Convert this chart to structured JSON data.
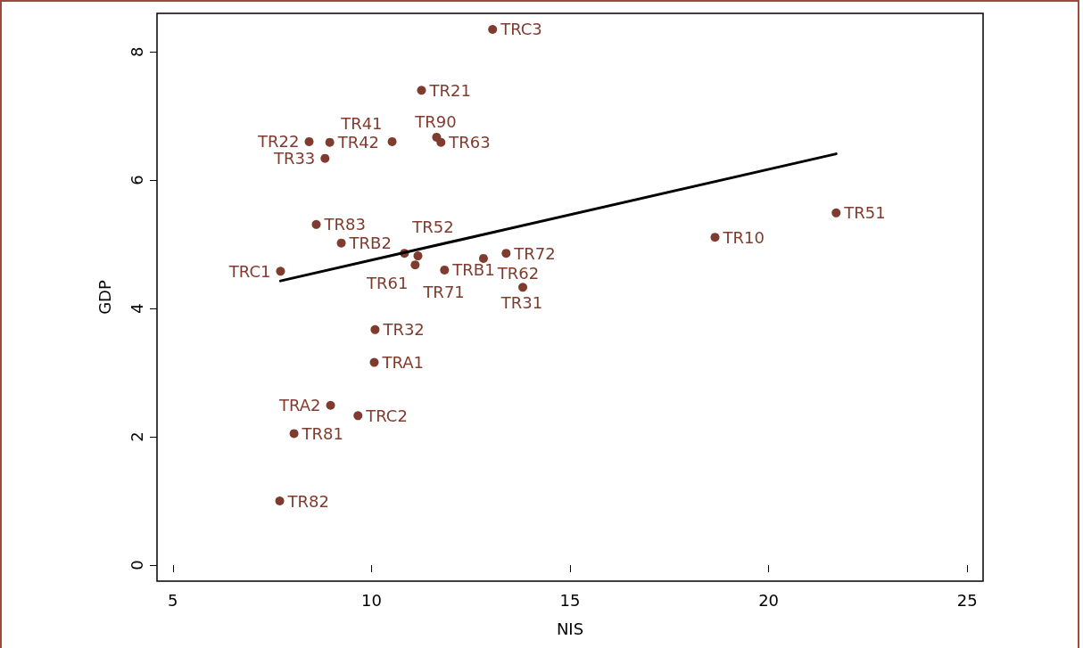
{
  "chart_data": {
    "type": "scatter",
    "xlabel": "NIS",
    "ylabel": "GDP",
    "xlim": [
      4.6,
      25.4
    ],
    "ylim": [
      -0.25,
      8.6
    ],
    "xticks": [
      5,
      10,
      15,
      20,
      25
    ],
    "yticks": [
      0,
      2,
      4,
      6,
      8
    ],
    "grid": false,
    "marker": "circle",
    "series": [
      {
        "color": "#7f3b2e",
        "x": [
          13.05,
          11.26,
          8.43,
          8.95,
          10.52,
          11.64,
          11.75,
          8.83,
          8.61,
          9.24,
          7.71,
          10.83,
          11.17,
          11.1,
          11.84,
          12.82,
          13.39,
          13.81,
          18.65,
          21.7,
          10.09,
          10.07,
          8.97,
          9.66,
          8.05,
          7.69
        ],
        "values": [
          8.35,
          7.4,
          6.6,
          6.59,
          6.6,
          6.67,
          6.59,
          6.34,
          5.31,
          5.02,
          4.58,
          4.86,
          4.82,
          4.68,
          4.6,
          4.78,
          4.86,
          4.33,
          5.11,
          5.49,
          3.67,
          3.16,
          2.49,
          2.33,
          2.05,
          1.0
        ],
        "value_labels": [
          "TRC3",
          "TR21",
          "TR22",
          "TR42",
          "TR41",
          "TR90",
          "TR63",
          "TR33",
          "TR83",
          "TRB2",
          "TRC1",
          "TR52",
          "TR61",
          "TR71",
          "TRB1",
          "TR62",
          "TR72",
          "TR31",
          "TR10",
          "TR51",
          "TR32",
          "TRA1",
          "TRA2",
          "TRC2",
          "TR81",
          "TR82"
        ]
      },
      {
        "type": "line",
        "color": "#000000",
        "x": [
          7.71,
          21.7
        ],
        "values": [
          4.43,
          6.41
        ],
        "marker": "none",
        "line_style": "solid"
      }
    ]
  }
}
